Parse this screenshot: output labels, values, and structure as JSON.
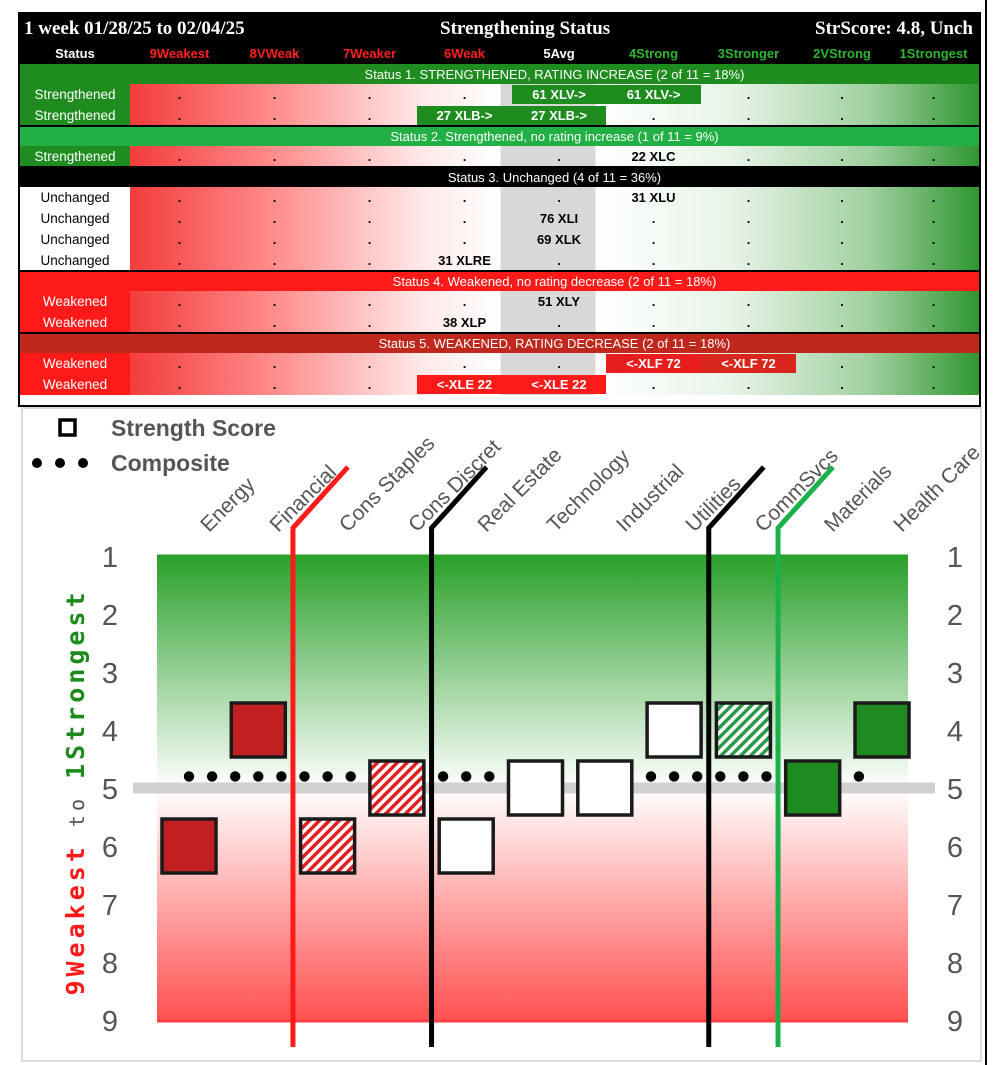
{
  "header": {
    "period": "1 week 01/28/25 to 02/04/25",
    "title": "Strengthening Status",
    "score": "StrScore: 4.8, Unch"
  },
  "columns": [
    "Status",
    "9Weakest",
    "8VWeak",
    "7Weaker",
    "6Weak",
    "5Avg",
    "4Strong",
    "3Stronger",
    "2VStrong",
    "1Strongest"
  ],
  "column_colors": [
    "#ffffff",
    "#ff2020",
    "#ff2020",
    "#ff2020",
    "#ff2020",
    "#ffffff",
    "#2fb52f",
    "#2fb52f",
    "#2fb52f",
    "#2fb52f"
  ],
  "bands": [
    {
      "text": "Status 1. STRENGTHENED, RATING INCREASE (2 of 11 = 18%)",
      "color": "#1e8c1e"
    },
    {
      "text": "Status 2. Strengthened, no rating increase (1 of 11 = 9%)",
      "color": "#22b045"
    },
    {
      "text": "Status 3. Unchanged (4 of 11 = 36%)",
      "color": "#000000"
    },
    {
      "text": "Status 4. Weakened, no rating decrease (2 of 11 = 18%)",
      "color": "#ff1a1a"
    },
    {
      "text": "Status 5. WEAKENED, RATING DECREASE (2 of 11 = 18%)",
      "color": "#c0281e"
    }
  ],
  "rows": [
    {
      "label": "Strengthened",
      "group": 0,
      "cells": [
        {
          "col": 5,
          "text": "61 XLV->",
          "bg": "#1e8c1e",
          "fg": "#ffffff"
        },
        {
          "col": 6,
          "text": "61 XLV->",
          "bg": "#1e8c1e",
          "fg": "#ffffff"
        }
      ]
    },
    {
      "label": "Strengthened",
      "group": 0,
      "cells": [
        {
          "col": 4,
          "text": "27 XLB->",
          "bg": "#1e8c1e",
          "fg": "#ffffff"
        },
        {
          "col": 5,
          "text": "27 XLB->",
          "bg": "#1e8c1e",
          "fg": "#ffffff"
        }
      ]
    },
    {
      "label": "Strengthened",
      "group": 1,
      "cells": [
        {
          "col": 6,
          "text": "22 XLC",
          "bg": "",
          "fg": "#000000"
        }
      ]
    },
    {
      "label": "Unchanged",
      "group": 2,
      "cells": [
        {
          "col": 6,
          "text": "31 XLU",
          "bg": "",
          "fg": "#000000"
        }
      ]
    },
    {
      "label": "Unchanged",
      "group": 2,
      "cells": [
        {
          "col": 5,
          "text": "76 XLI",
          "bg": "",
          "fg": "#000000"
        }
      ]
    },
    {
      "label": "Unchanged",
      "group": 2,
      "cells": [
        {
          "col": 5,
          "text": "69 XLK",
          "bg": "",
          "fg": "#000000"
        }
      ]
    },
    {
      "label": "Unchanged",
      "group": 2,
      "cells": [
        {
          "col": 4,
          "text": "31 XLRE",
          "bg": "",
          "fg": "#000000"
        }
      ]
    },
    {
      "label": "Weakened",
      "group": 3,
      "cells": [
        {
          "col": 5,
          "text": "51 XLY",
          "bg": "",
          "fg": "#000000"
        }
      ]
    },
    {
      "label": "Weakened",
      "group": 3,
      "cells": [
        {
          "col": 4,
          "text": "38 XLP",
          "bg": "",
          "fg": "#000000"
        }
      ]
    },
    {
      "label": "Weakened",
      "group": 4,
      "cells": [
        {
          "col": 6,
          "text": "<-XLF 72",
          "bg": "#e81e1e",
          "fg": "#ffffff"
        },
        {
          "col": 7,
          "text": "<-XLF 72",
          "bg": "#d8261c",
          "fg": "#ffffff"
        }
      ]
    },
    {
      "label": "Weakened",
      "group": 4,
      "cells": [
        {
          "col": 4,
          "text": "<-XLE 22",
          "bg": "#ff1a1a",
          "fg": "#ffffff"
        },
        {
          "col": 5,
          "text": "<-XLE 22",
          "bg": "#ff1a1a",
          "fg": "#ffffff"
        }
      ]
    }
  ],
  "row_label_colors": [
    {
      "bg": "#1e8c1e",
      "fg": "#ffffff"
    },
    {
      "bg": "#1e8c1e",
      "fg": "#ffffff"
    },
    {
      "bg": "#ffffff",
      "fg": "#000000"
    },
    {
      "bg": "#ff1a1a",
      "fg": "#ffffff"
    },
    {
      "bg": "#ff1a1a",
      "fg": "#ffffff"
    }
  ],
  "dot_char": ".",
  "chart_data": {
    "type": "scatter",
    "legend": [
      "Strength Score",
      "Composite"
    ],
    "legend_placement": "top-left",
    "categories": [
      "Energy",
      "Financial",
      "Cons Staples",
      "Cons Discret",
      "Real Estate",
      "Technology",
      "Industrial",
      "Utilities",
      "CommSvcs",
      "Materials",
      "Health Care"
    ],
    "strength_score": [
      6,
      4,
      6,
      5,
      6,
      5,
      5,
      4,
      4,
      5,
      4
    ],
    "fill": [
      "red",
      "red",
      "red-hatch",
      "red-hatch",
      "white",
      "white",
      "white",
      "white",
      "green-hatch",
      "green",
      "green"
    ],
    "composite": 4.8,
    "average_line": 5,
    "yaxis_left_label_parts": [
      "9Weakest",
      " to ",
      "1Strongest"
    ],
    "yaxis_ticks": [
      1,
      2,
      3,
      4,
      5,
      6,
      7,
      8,
      9
    ],
    "ylim": [
      1,
      9
    ],
    "status_lines": [
      {
        "after_category": 1,
        "color": "#ff1a1a"
      },
      {
        "after_category": 3,
        "color": "#000000"
      },
      {
        "after_category": 7,
        "color": "#000000"
      },
      {
        "after_category": 8,
        "color": "#1ab04a"
      }
    ],
    "colors": {
      "red": "#c22020",
      "green": "#1f8a1f",
      "hatch_red": "#e02020",
      "hatch_green": "#2a9a4a",
      "top_band": "#2aa02a",
      "bottom_band": "#ff5050"
    }
  }
}
